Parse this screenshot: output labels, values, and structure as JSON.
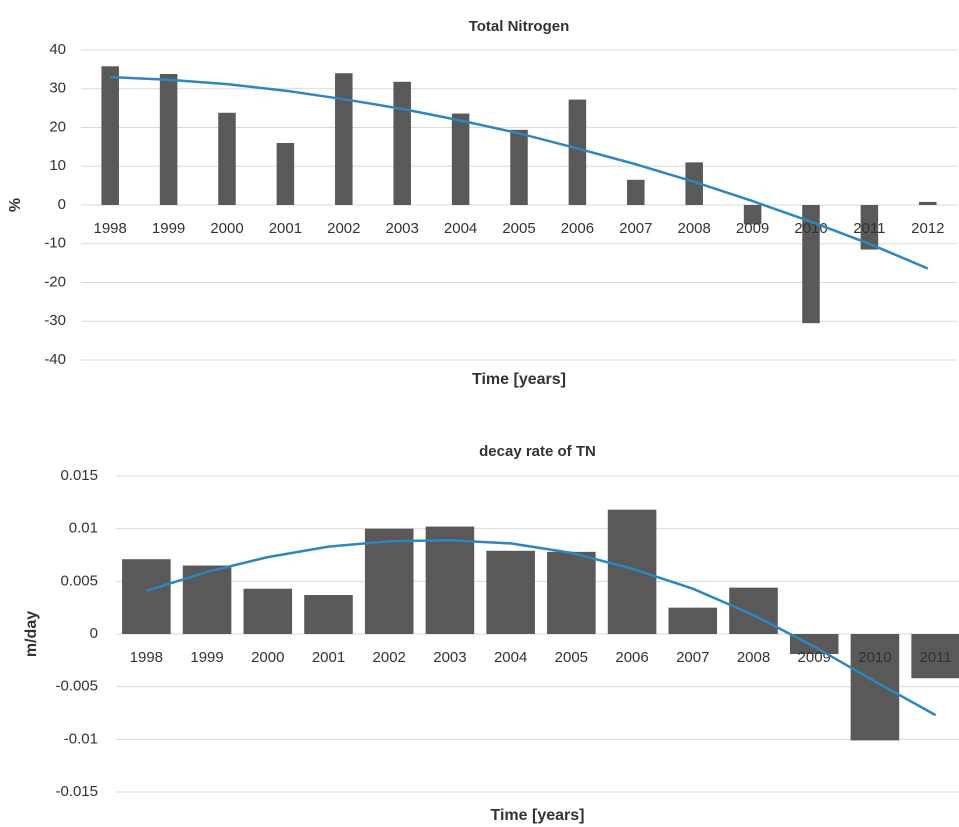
{
  "chart_data": [
    {
      "type": "bar",
      "title": "Total Nitrogen",
      "x_label": "Time [years]",
      "y_label": "%",
      "categories": [
        "1998",
        "1999",
        "2000",
        "2001",
        "2002",
        "2003",
        "2004",
        "2005",
        "2006",
        "2007",
        "2008",
        "2009",
        "2010",
        "2011",
        "2012"
      ],
      "series": [
        {
          "type": "bar",
          "color": "#595959",
          "values": [
            35.8,
            33.8,
            23.8,
            16,
            34,
            31.8,
            23.6,
            19.4,
            27.2,
            6.5,
            11,
            -5,
            -30.5,
            -11.5,
            0.8
          ]
        },
        {
          "type": "line",
          "color": "#2e86c1",
          "values": [
            33,
            32.3,
            31.2,
            29.5,
            27.3,
            24.8,
            21.8,
            18.5,
            14.6,
            10.5,
            6,
            1,
            -4.3,
            -10,
            -16.4
          ]
        }
      ],
      "ylim": [
        -40,
        40
      ],
      "yticks": [
        -40,
        -30,
        -20,
        -10,
        0,
        10,
        20,
        30,
        40
      ],
      "grid": true
    },
    {
      "type": "bar",
      "title": "decay rate of TN",
      "x_label": "Time [years]",
      "y_label": "m/day",
      "categories": [
        "1998",
        "1999",
        "2000",
        "2001",
        "2002",
        "2003",
        "2004",
        "2005",
        "2006",
        "2007",
        "2008",
        "2009",
        "2010",
        "2011"
      ],
      "series": [
        {
          "type": "bar",
          "color": "#595959",
          "values": [
            0.0071,
            0.0065,
            0.0043,
            0.0037,
            0.01,
            0.0102,
            0.0079,
            0.0078,
            0.0118,
            0.0025,
            0.0044,
            -0.0019,
            -0.0101,
            -0.0042
          ]
        },
        {
          "type": "line",
          "color": "#2e86c1",
          "values": [
            0.0041,
            0.0059,
            0.0073,
            0.0083,
            0.0088,
            0.0089,
            0.0086,
            0.0077,
            0.0062,
            0.0043,
            0.0018,
            -0.0012,
            -0.0045,
            -0.0077
          ]
        }
      ],
      "ylim": [
        -0.015,
        0.015
      ],
      "yticks": [
        -0.015,
        -0.01,
        -0.005,
        0,
        0.005,
        0.01,
        0.015
      ],
      "grid": true
    }
  ]
}
